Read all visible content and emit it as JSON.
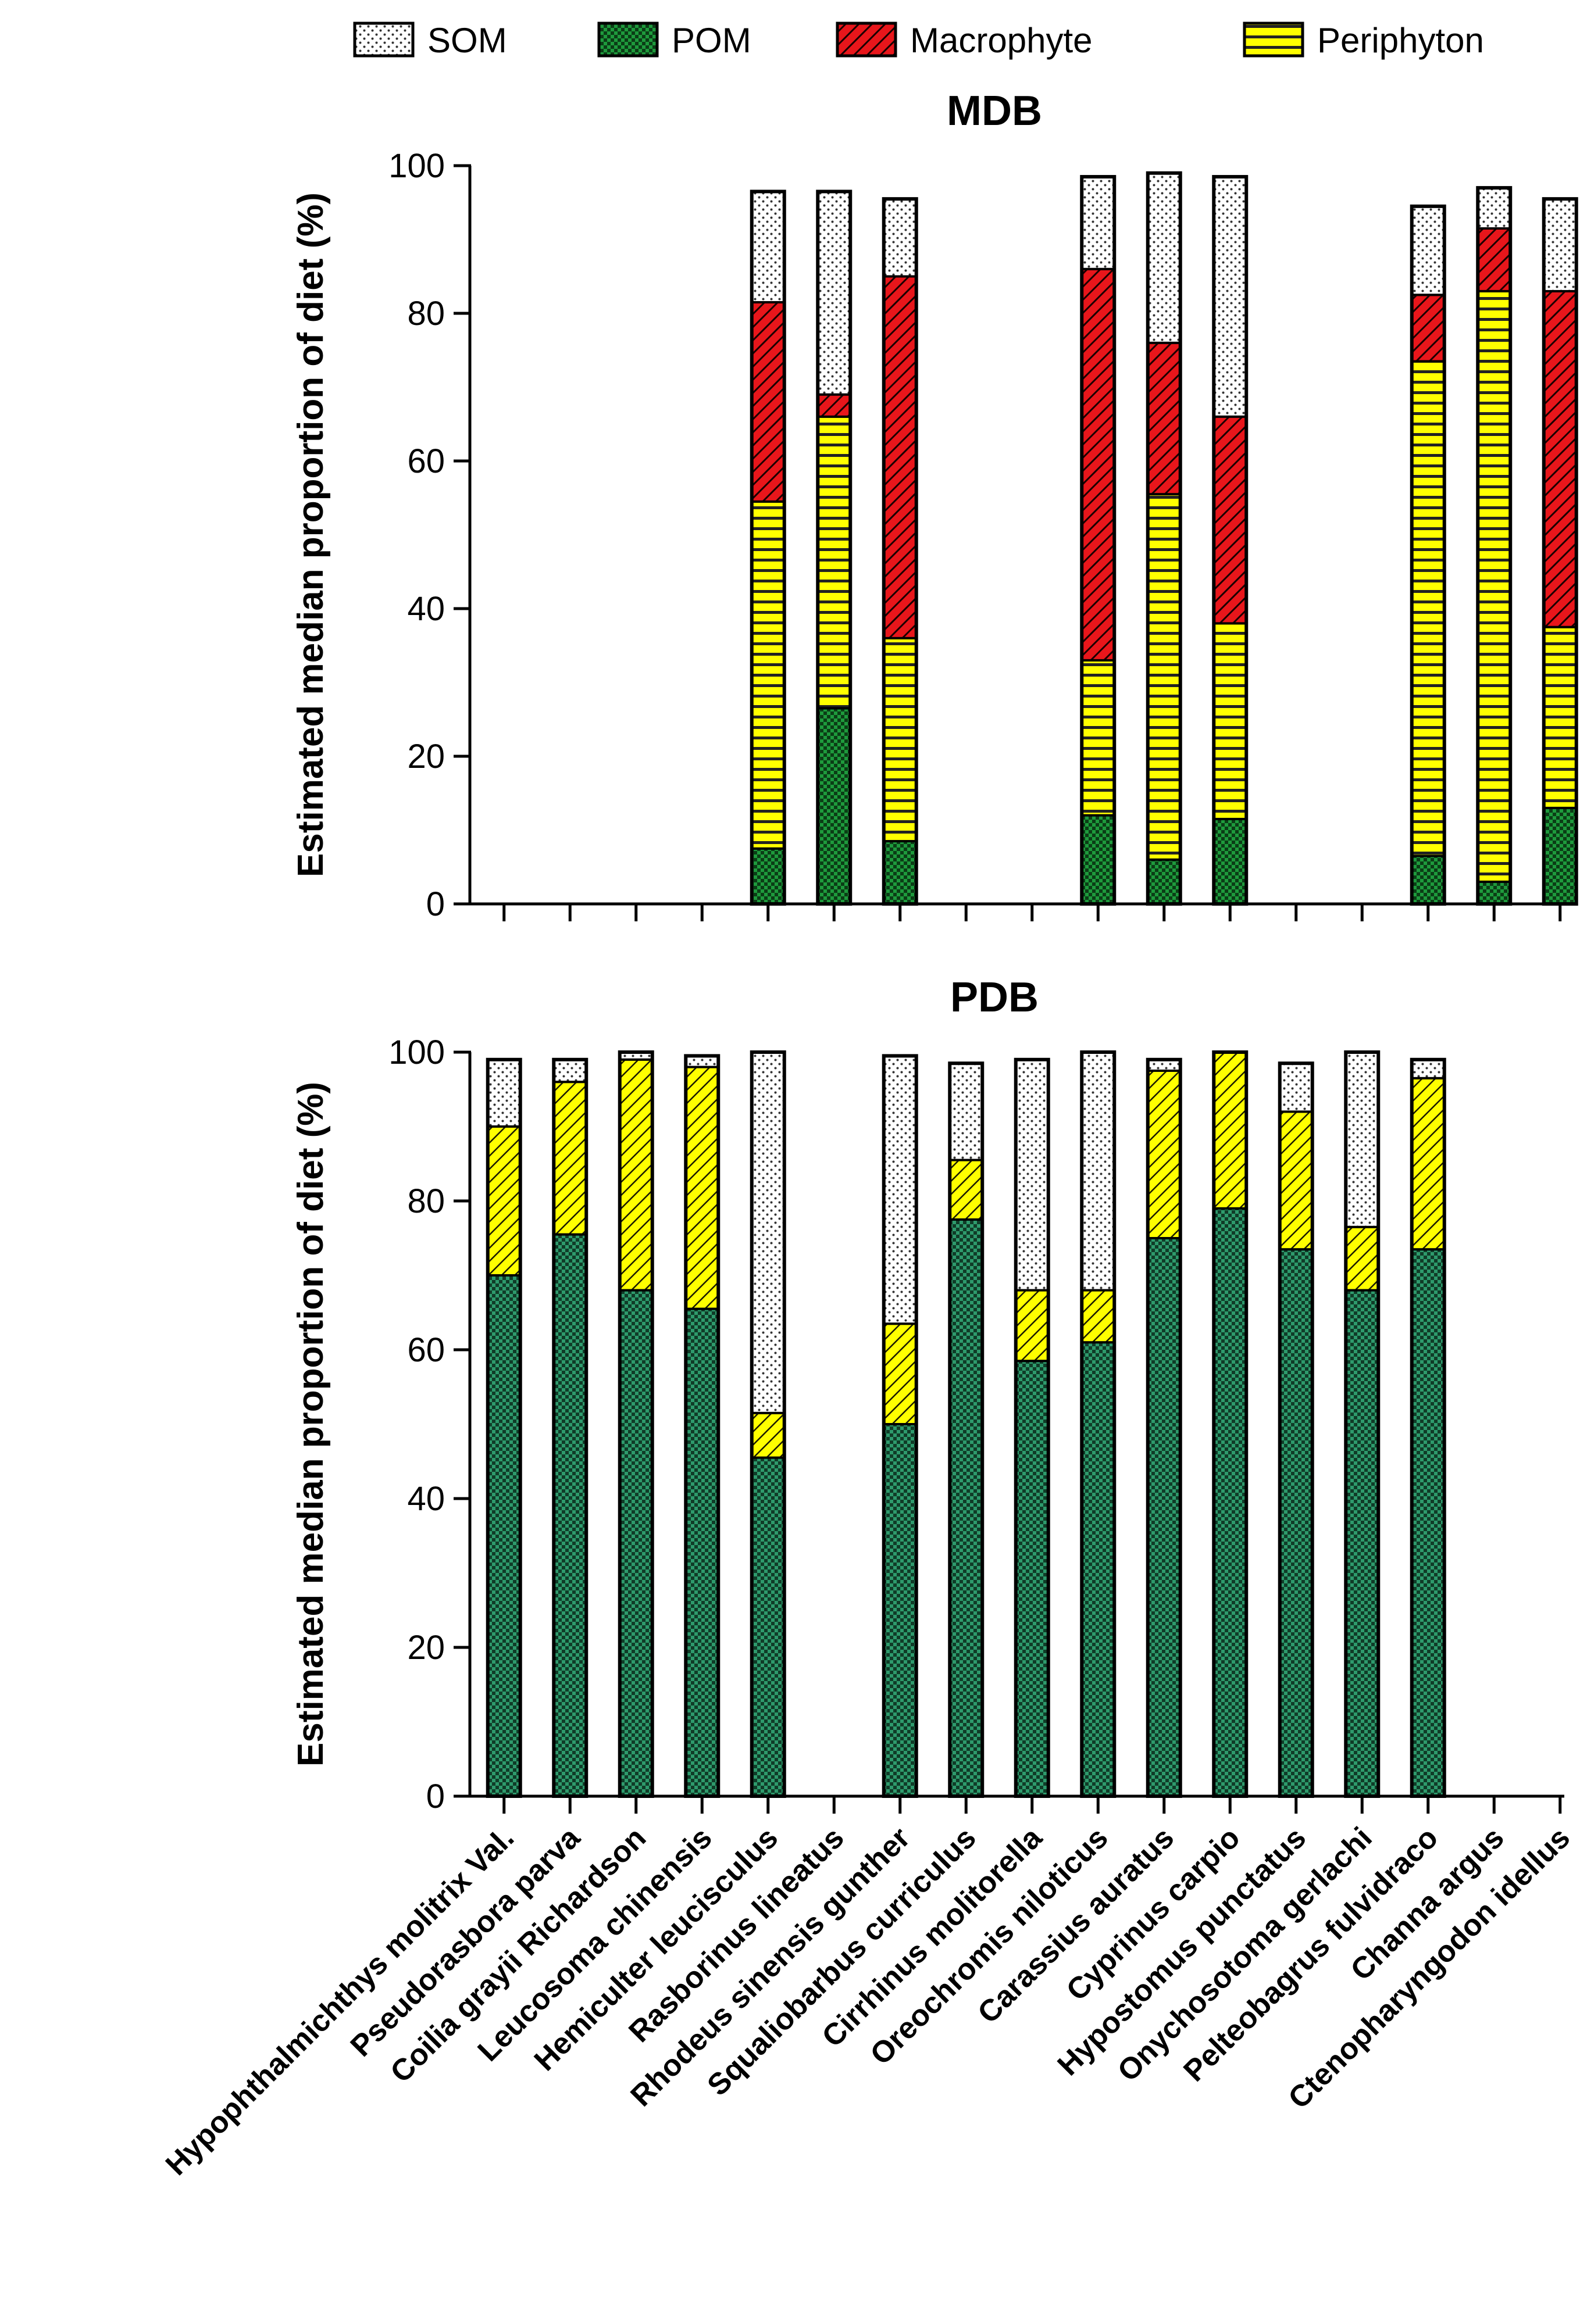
{
  "chart_data": [
    {
      "type": "bar",
      "stacked": true,
      "title": "MDB",
      "ylabel": "Estimated median proportion of diet  (%)",
      "ylim": [
        0,
        100
      ],
      "yticks": [
        0,
        20,
        40,
        60,
        80,
        100
      ],
      "categories": [
        "Hypophthalmichthys molitrix Val.",
        "Pseudorasbora parva",
        "Coilia grayii Richardson",
        "Leucosoma chinensis",
        "Hemiculter leucisculus",
        "Rasborinus lineatus",
        "Rhodeus sinensis gunther",
        "Squaliobarbus curriculus",
        "Cirrhinus molitorella",
        "Oreochromis niloticus",
        "Carassius auratus",
        "Cyprinus carpio",
        "Hypostomus punctatus",
        "Onychosotoma gerlachi",
        "Pelteobagrus fulvidraco",
        "Channa argus",
        "Ctenopharyngodon idellus"
      ],
      "series": [
        {
          "name": "POM",
          "values": [
            null,
            null,
            null,
            null,
            7.5,
            26.5,
            8.5,
            null,
            null,
            12,
            6,
            11.5,
            null,
            null,
            6.5,
            3,
            13
          ]
        },
        {
          "name": "Periphyton",
          "values": [
            null,
            null,
            null,
            null,
            47,
            39.5,
            27.5,
            null,
            null,
            21,
            49.5,
            26.5,
            null,
            null,
            67,
            80,
            24.5
          ]
        },
        {
          "name": "Macrophyte",
          "values": [
            null,
            null,
            null,
            null,
            27,
            3,
            49,
            null,
            null,
            53,
            20.5,
            28,
            null,
            null,
            9,
            8.5,
            45.5
          ]
        },
        {
          "name": "SOM",
          "values": [
            null,
            null,
            null,
            null,
            15,
            27.5,
            10.5,
            null,
            null,
            12.5,
            23,
            32.5,
            null,
            null,
            12,
            5.5,
            12.5
          ]
        }
      ]
    },
    {
      "type": "bar",
      "stacked": true,
      "title": "PDB",
      "ylabel": "Estimated median proportion of diet  (%)",
      "ylim": [
        0,
        100
      ],
      "yticks": [
        0,
        20,
        40,
        60,
        80,
        100
      ],
      "categories": [
        "Hypophthalmichthys molitrix Val.",
        "Pseudorasbora parva",
        "Coilia grayii Richardson",
        "Leucosoma chinensis",
        "Hemiculter leucisculus",
        "Rasborinus lineatus",
        "Rhodeus sinensis gunther",
        "Squaliobarbus curriculus",
        "Cirrhinus molitorella",
        "Oreochromis niloticus",
        "Carassius auratus",
        "Cyprinus carpio",
        "Hypostomus punctatus",
        "Onychosotoma gerlachi",
        "Pelteobagrus fulvidraco",
        "Channa argus",
        "Ctenopharyngodon idellus"
      ],
      "series": [
        {
          "name": "POM",
          "values": [
            70,
            75.5,
            68,
            65.5,
            45.5,
            null,
            50,
            77.5,
            58.5,
            61,
            75,
            79,
            73.5,
            68,
            73.5,
            null,
            null
          ]
        },
        {
          "name": "Periphyton",
          "values": [
            20,
            20.5,
            31,
            32.5,
            6,
            null,
            13.5,
            8,
            9.5,
            7,
            22.5,
            21,
            18.5,
            8.5,
            23,
            null,
            null
          ]
        },
        {
          "name": "SOM",
          "values": [
            9,
            3,
            1,
            1.5,
            48.5,
            null,
            36,
            13,
            31,
            32,
            1.5,
            0,
            6.5,
            23.5,
            2.5,
            null,
            null
          ]
        }
      ]
    }
  ],
  "legend": {
    "position": "top",
    "entries": [
      {
        "label": "SOM",
        "color": "#ffffff",
        "pattern": "dots"
      },
      {
        "label": "POM",
        "color": "#1e9a3c",
        "pattern": "checker"
      },
      {
        "label": "Macrophyte",
        "color": "#e8161b",
        "pattern": "diagonal"
      },
      {
        "label": "Periphyton",
        "color": "#ffff00",
        "pattern": "horizontal"
      }
    ]
  },
  "colors": {
    "SOM": "#ffffff",
    "POM_mdb": "#1e9a3c",
    "POM_pdb": "#2e9a6c",
    "Macrophyte": "#e8161b",
    "Periphyton": "#ffff00",
    "Periphyton_pdb": "#ffff00"
  }
}
